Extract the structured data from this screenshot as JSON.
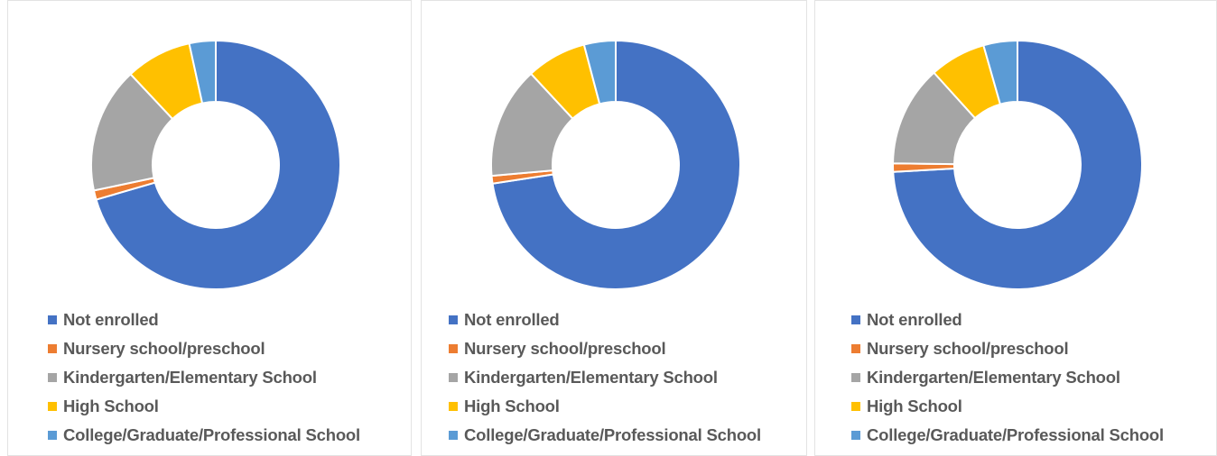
{
  "chart_data": [
    {
      "type": "pie",
      "variant": "donut",
      "title": "",
      "legend_position": "bottom",
      "categories": [
        "Not enrolled",
        "Nursery school/preschool",
        "Kindergarten/Elementary School",
        "High School",
        "College/Graduate/Professional School"
      ],
      "colors": [
        "#4472C4",
        "#ED7D31",
        "#A5A5A5",
        "#FFC000",
        "#5B9BD5"
      ],
      "values": [
        70.0,
        1.2,
        16.2,
        8.5,
        3.4
      ]
    },
    {
      "type": "pie",
      "variant": "donut",
      "title": "",
      "legend_position": "bottom",
      "categories": [
        "Not enrolled",
        "Nursery school/preschool",
        "Kindergarten/Elementary School",
        "High School",
        "College/Graduate/Professional School"
      ],
      "colors": [
        "#4472C4",
        "#ED7D31",
        "#A5A5A5",
        "#FFC000",
        "#5B9BD5"
      ],
      "values": [
        72.6,
        1.0,
        14.5,
        7.8,
        4.1
      ]
    },
    {
      "type": "pie",
      "variant": "donut",
      "title": "",
      "legend_position": "bottom",
      "categories": [
        "Not enrolled",
        "Nursery school/preschool",
        "Kindergarten/Elementary School",
        "High School",
        "College/Graduate/Professional School"
      ],
      "colors": [
        "#4472C4",
        "#ED7D31",
        "#A5A5A5",
        "#FFC000",
        "#5B9BD5"
      ],
      "values": [
        74.1,
        1.1,
        13.1,
        7.3,
        4.4
      ]
    }
  ]
}
